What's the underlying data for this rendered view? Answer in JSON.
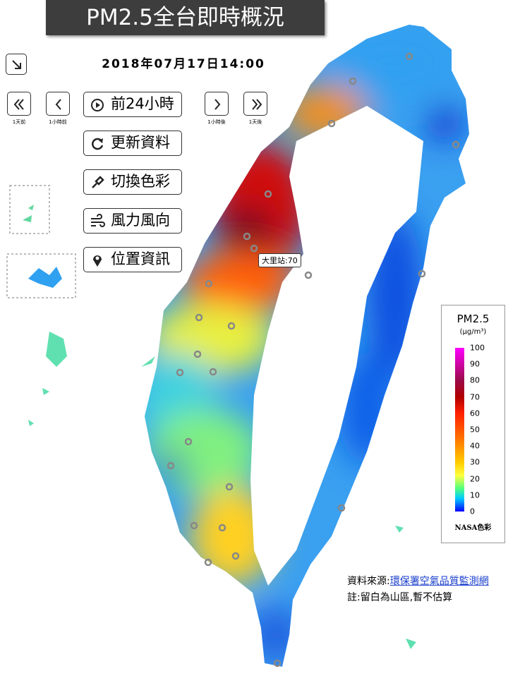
{
  "header": {
    "title": "PM2.5全台即時概況",
    "datetime": "2018年07月17日14:00"
  },
  "nav": {
    "day_back": "1天前",
    "hour_back": "1小時前",
    "hour_forward": "1小時後",
    "day_forward": "1天後"
  },
  "buttons": [
    "前24小時",
    "更新資料",
    "切換色彩",
    "風力風向",
    "位置資訊"
  ],
  "tooltip": "大里站:70",
  "legend": {
    "title": "PM2.5",
    "unit": "(μg/m³)",
    "ticks": [
      100,
      90,
      80,
      70,
      60,
      50,
      40,
      30,
      20,
      10,
      0
    ],
    "footer": "NASA色彩"
  },
  "source": {
    "label": "資料來源:",
    "link": "環保署空氣品質監測網",
    "note": "註:留白為山區,暫不估算"
  }
}
